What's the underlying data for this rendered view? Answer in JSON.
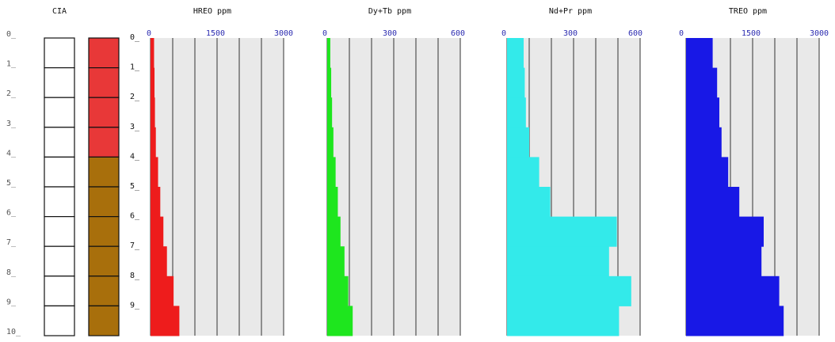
{
  "depth_axis": {
    "outer_labels": [
      "0_",
      "1_",
      "2_",
      "3_",
      "4_",
      "5_",
      "6_",
      "7_",
      "8_",
      "9_",
      "10_"
    ],
    "inner_labels": [
      "0_",
      "1_",
      "2_",
      "3_",
      "4_",
      "5_",
      "6_",
      "7_",
      "8_",
      "9_"
    ]
  },
  "cia_column": {
    "title": "CIA",
    "cells": 10,
    "colors": [
      "#e83838",
      "#e83838",
      "#e83838",
      "#e83838",
      "#a86f0c",
      "#a86f0c",
      "#a86f0c",
      "#a86f0c",
      "#a86f0c",
      "#a86f0c"
    ]
  },
  "chart_data": [
    {
      "type": "bar",
      "orientation": "horizontal-profile",
      "title": "HREO ppm",
      "xlim": [
        0,
        3000
      ],
      "ticks": [
        "0",
        "1500",
        "3000"
      ],
      "color": "#ee1c1c",
      "depth_intervals": [
        [
          0,
          1
        ],
        [
          1,
          2
        ],
        [
          2,
          3
        ],
        [
          3,
          4
        ],
        [
          4,
          5
        ],
        [
          5,
          6
        ],
        [
          6,
          7
        ],
        [
          7,
          8
        ],
        [
          8,
          9
        ],
        [
          9,
          10
        ]
      ],
      "values": [
        80,
        90,
        100,
        120,
        170,
        220,
        290,
        370,
        520,
        650
      ]
    },
    {
      "type": "bar",
      "orientation": "horizontal-profile",
      "title": "Dy+Tb ppm",
      "xlim": [
        0,
        600
      ],
      "ticks": [
        "0",
        "300",
        "600"
      ],
      "color": "#1ee61e",
      "depth_intervals": [
        [
          0,
          1
        ],
        [
          1,
          2
        ],
        [
          2,
          3
        ],
        [
          3,
          4
        ],
        [
          4,
          5
        ],
        [
          5,
          6
        ],
        [
          6,
          7
        ],
        [
          7,
          8
        ],
        [
          8,
          9
        ],
        [
          9,
          10
        ]
      ],
      "values": [
        14,
        18,
        22,
        28,
        38,
        48,
        60,
        78,
        95,
        115
      ]
    },
    {
      "type": "bar",
      "orientation": "horizontal-profile",
      "title": "Nd+Pr ppm",
      "xlim": [
        0,
        600
      ],
      "ticks": [
        "0",
        "300",
        "600"
      ],
      "color": "#33eaea",
      "depth_intervals": [
        [
          0,
          1
        ],
        [
          1,
          2
        ],
        [
          2,
          3
        ],
        [
          3,
          4
        ],
        [
          4,
          5
        ],
        [
          5,
          6
        ],
        [
          6,
          7
        ],
        [
          7,
          8
        ],
        [
          8,
          9
        ],
        [
          9,
          10
        ]
      ],
      "values": [
        75,
        80,
        85,
        100,
        145,
        195,
        495,
        460,
        560,
        505
      ]
    },
    {
      "type": "bar",
      "orientation": "horizontal-profile",
      "title": "TREO ppm",
      "xlim": [
        0,
        3000
      ],
      "ticks": [
        "0",
        "1500",
        "3000"
      ],
      "color": "#1818e6",
      "depth_intervals": [
        [
          0,
          1
        ],
        [
          1,
          2
        ],
        [
          2,
          3
        ],
        [
          3,
          4
        ],
        [
          4,
          5
        ],
        [
          5,
          6
        ],
        [
          6,
          7
        ],
        [
          7,
          8
        ],
        [
          8,
          9
        ],
        [
          9,
          10
        ]
      ],
      "values": [
        600,
        700,
        750,
        800,
        950,
        1200,
        1750,
        1700,
        2100,
        2200
      ]
    }
  ]
}
